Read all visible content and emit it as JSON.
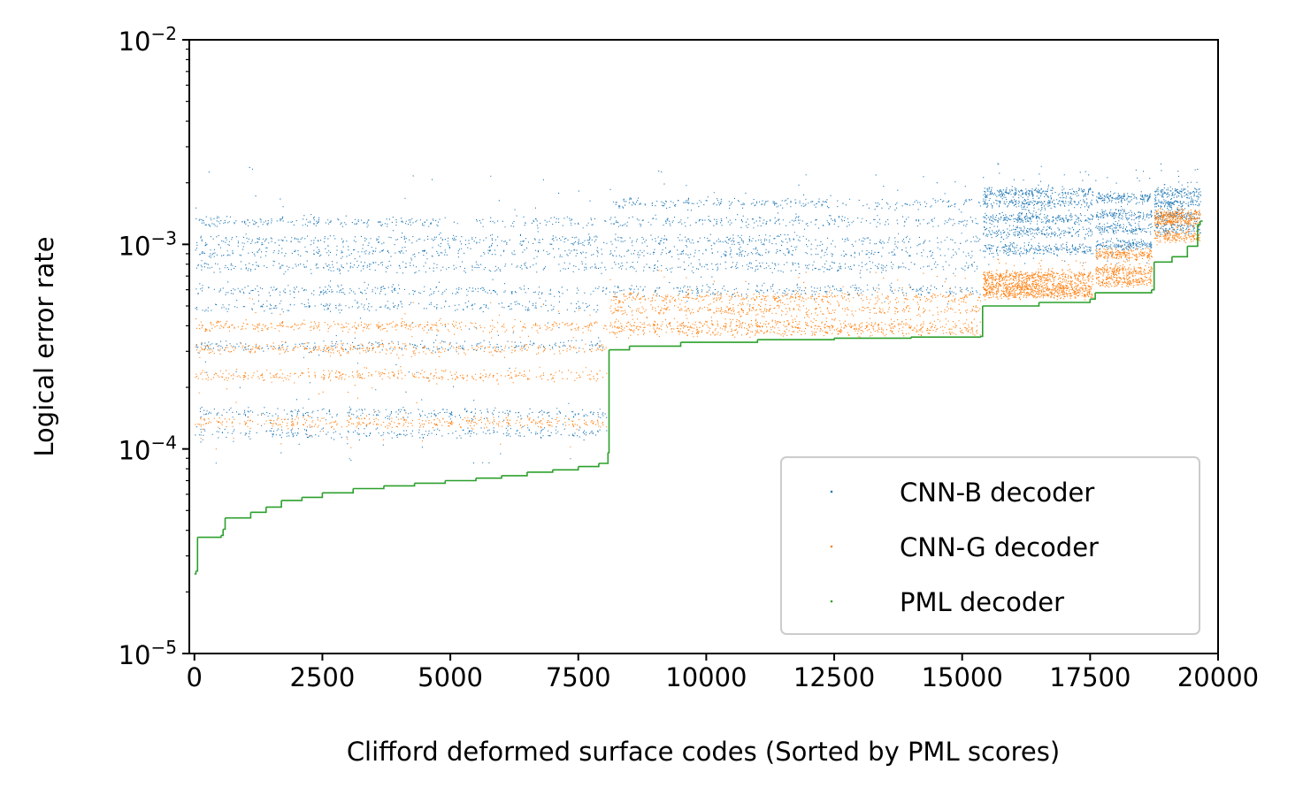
{
  "chart_data": {
    "type": "scatter",
    "title": "",
    "xlabel": "Clifford deformed surface codes (Sorted by PML scores)",
    "ylabel": "Logical error rate",
    "xlim": [
      -100,
      20000
    ],
    "ylim": [
      1e-05,
      0.01
    ],
    "yscale": "log",
    "grid": false,
    "legend_position": "lower-right",
    "x_ticks": [
      {
        "value": 0,
        "label": "0"
      },
      {
        "value": 2500,
        "label": "2500"
      },
      {
        "value": 5000,
        "label": "5000"
      },
      {
        "value": 7500,
        "label": "7500"
      },
      {
        "value": 10000,
        "label": "10000"
      },
      {
        "value": 12500,
        "label": "12500"
      },
      {
        "value": 15000,
        "label": "15000"
      },
      {
        "value": 17500,
        "label": "17500"
      },
      {
        "value": 20000,
        "label": "20000"
      }
    ],
    "y_ticks": [
      {
        "value": 1e-05,
        "base": "10",
        "exp": "−5"
      },
      {
        "value": 0.0001,
        "base": "10",
        "exp": "−4"
      },
      {
        "value": 0.001,
        "base": "10",
        "exp": "−3"
      },
      {
        "value": 0.01,
        "base": "10",
        "exp": "−2"
      }
    ],
    "series": [
      {
        "name": "CNN-B decoder",
        "color": "#1f77b4",
        "n_points": 19650,
        "note_levels_by_segment": [
          {
            "x": [
              0,
              8050
            ],
            "levels": [
              0.00012,
              0.00015,
              0.00032,
              0.0005,
              0.0006,
              0.00078,
              0.00092,
              0.00105,
              0.0013
            ],
            "spread": [
              8.5e-05,
              0.0024
            ]
          },
          {
            "x": [
              8100,
              15350
            ],
            "levels": [
              0.0006,
              0.00078,
              0.00092,
              0.00105,
              0.0013,
              0.0016
            ],
            "spread": [
              0.0005,
              0.0023
            ]
          },
          {
            "x": [
              15400,
              17550
            ],
            "levels": [
              0.00095,
              0.00115,
              0.00135,
              0.0016,
              0.0018
            ],
            "spread": [
              0.0008,
              0.0025
            ]
          },
          {
            "x": [
              17600,
              18700
            ],
            "levels": [
              0.001,
              0.0012,
              0.0014,
              0.0017
            ],
            "spread": [
              0.0008,
              0.0024
            ]
          },
          {
            "x": [
              18750,
              19650
            ],
            "levels": [
              0.0012,
              0.0014,
              0.0016,
              0.0018
            ],
            "spread": [
              0.0011,
              0.0025
            ]
          }
        ]
      },
      {
        "name": "CNN-G decoder",
        "color": "#ff7f0e",
        "n_points": 19650,
        "note_levels_by_segment": [
          {
            "x": [
              0,
              8050
            ],
            "levels": [
              0.000135,
              0.00023,
              0.00031,
              0.0004
            ],
            "spread": [
              0.0001,
              0.00055
            ]
          },
          {
            "x": [
              8100,
              15350
            ],
            "levels": [
              0.00038,
              0.00041,
              0.00048,
              0.00055
            ],
            "spread": [
              0.00035,
              0.00075
            ]
          },
          {
            "x": [
              15400,
              17550
            ],
            "levels": [
              0.00058,
              0.00063,
              0.0007
            ],
            "spread": [
              0.00055,
              0.00085
            ]
          },
          {
            "x": [
              17600,
              18700
            ],
            "levels": [
              0.00066,
              0.00075,
              0.0009
            ],
            "spread": [
              0.00063,
              0.001
            ]
          },
          {
            "x": [
              18750,
              19650
            ],
            "levels": [
              0.0011,
              0.0013,
              0.0014
            ],
            "spread": [
              0.001,
              0.0015
            ]
          }
        ]
      },
      {
        "name": "PML decoder",
        "color": "#2ca02c",
        "steps": [
          [
            0,
            2.45e-05
          ],
          [
            30,
            2.53e-05
          ],
          [
            60,
            3.7e-05
          ],
          [
            520,
            3.78e-05
          ],
          [
            560,
            4.05e-05
          ],
          [
            600,
            4.6e-05
          ],
          [
            1100,
            4.9e-05
          ],
          [
            1400,
            5.2e-05
          ],
          [
            1700,
            5.6e-05
          ],
          [
            2100,
            5.8e-05
          ],
          [
            2500,
            6.1e-05
          ],
          [
            3100,
            6.4e-05
          ],
          [
            3700,
            6.6e-05
          ],
          [
            4300,
            6.8e-05
          ],
          [
            4900,
            7e-05
          ],
          [
            5500,
            7.2e-05
          ],
          [
            6000,
            7.4e-05
          ],
          [
            6500,
            7.7e-05
          ],
          [
            7000,
            7.9e-05
          ],
          [
            7500,
            8.2e-05
          ],
          [
            7900,
            8.5e-05
          ],
          [
            8080,
            9.6e-05
          ],
          [
            8100,
            0.000305
          ],
          [
            8500,
            0.000318
          ],
          [
            9500,
            0.000332
          ],
          [
            11000,
            0.000342
          ],
          [
            12500,
            0.000348
          ],
          [
            14000,
            0.000352
          ],
          [
            15350,
            0.000355
          ],
          [
            15400,
            0.0005
          ],
          [
            16500,
            0.00052
          ],
          [
            17500,
            0.00054
          ],
          [
            17600,
            0.00058
          ],
          [
            18700,
            0.0006
          ],
          [
            18750,
            0.00082
          ],
          [
            19100,
            0.00087
          ],
          [
            19400,
            0.00098
          ],
          [
            19600,
            0.00125
          ],
          [
            19650,
            0.0013
          ]
        ]
      }
    ]
  }
}
